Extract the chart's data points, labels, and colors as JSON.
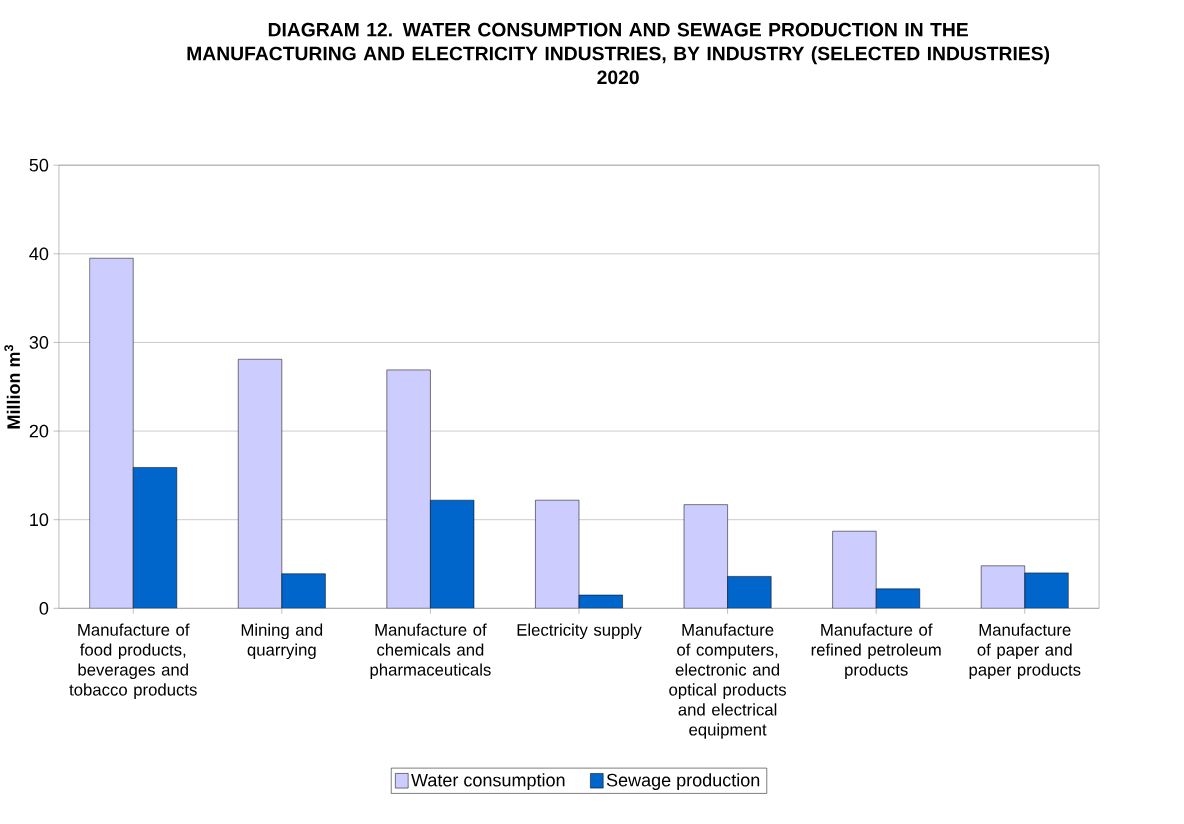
{
  "chart_data": {
    "type": "bar",
    "title": "DIAGRAM 12. WATER CONSUMPTION AND SEWAGE PRODUCTION IN THE MANUFACTURING AND ELECTRICITY INDUSTRIES, BY INDUSTRY (SELECTED INDUSTRIES)",
    "subtitle": "2020",
    "ylabel": "**Million m$^{3}$**",
    "categories": [
      "Manufacture of food products, beverages and tobacco products",
      "Mining and quarrying",
      "Manufacture of chemicals and pharmaceuticals",
      "Electricity supply",
      "Manufacture of computers, electronic and optical products and electrical equipment",
      "Manufacture of refined petroleum products",
      "Manufacture of paper and paper products"
    ],
    "series": [
      {
        "name": "Water consumption",
        "color": "#ccccff",
        "values": [
          39.5,
          28.1,
          26.9,
          12.2,
          11.7,
          8.7,
          4.8
        ]
      },
      {
        "name": "Sewage production",
        "color": "#0066cc",
        "values": [
          15.9,
          3.9,
          12.2,
          1.5,
          3.6,
          2.2,
          4.0
        ]
      }
    ],
    "ylim": [
      0,
      50
    ],
    "yticks": [
      0,
      10,
      20,
      30,
      40,
      50
    ],
    "grid": "y",
    "legend": "bottom"
  }
}
